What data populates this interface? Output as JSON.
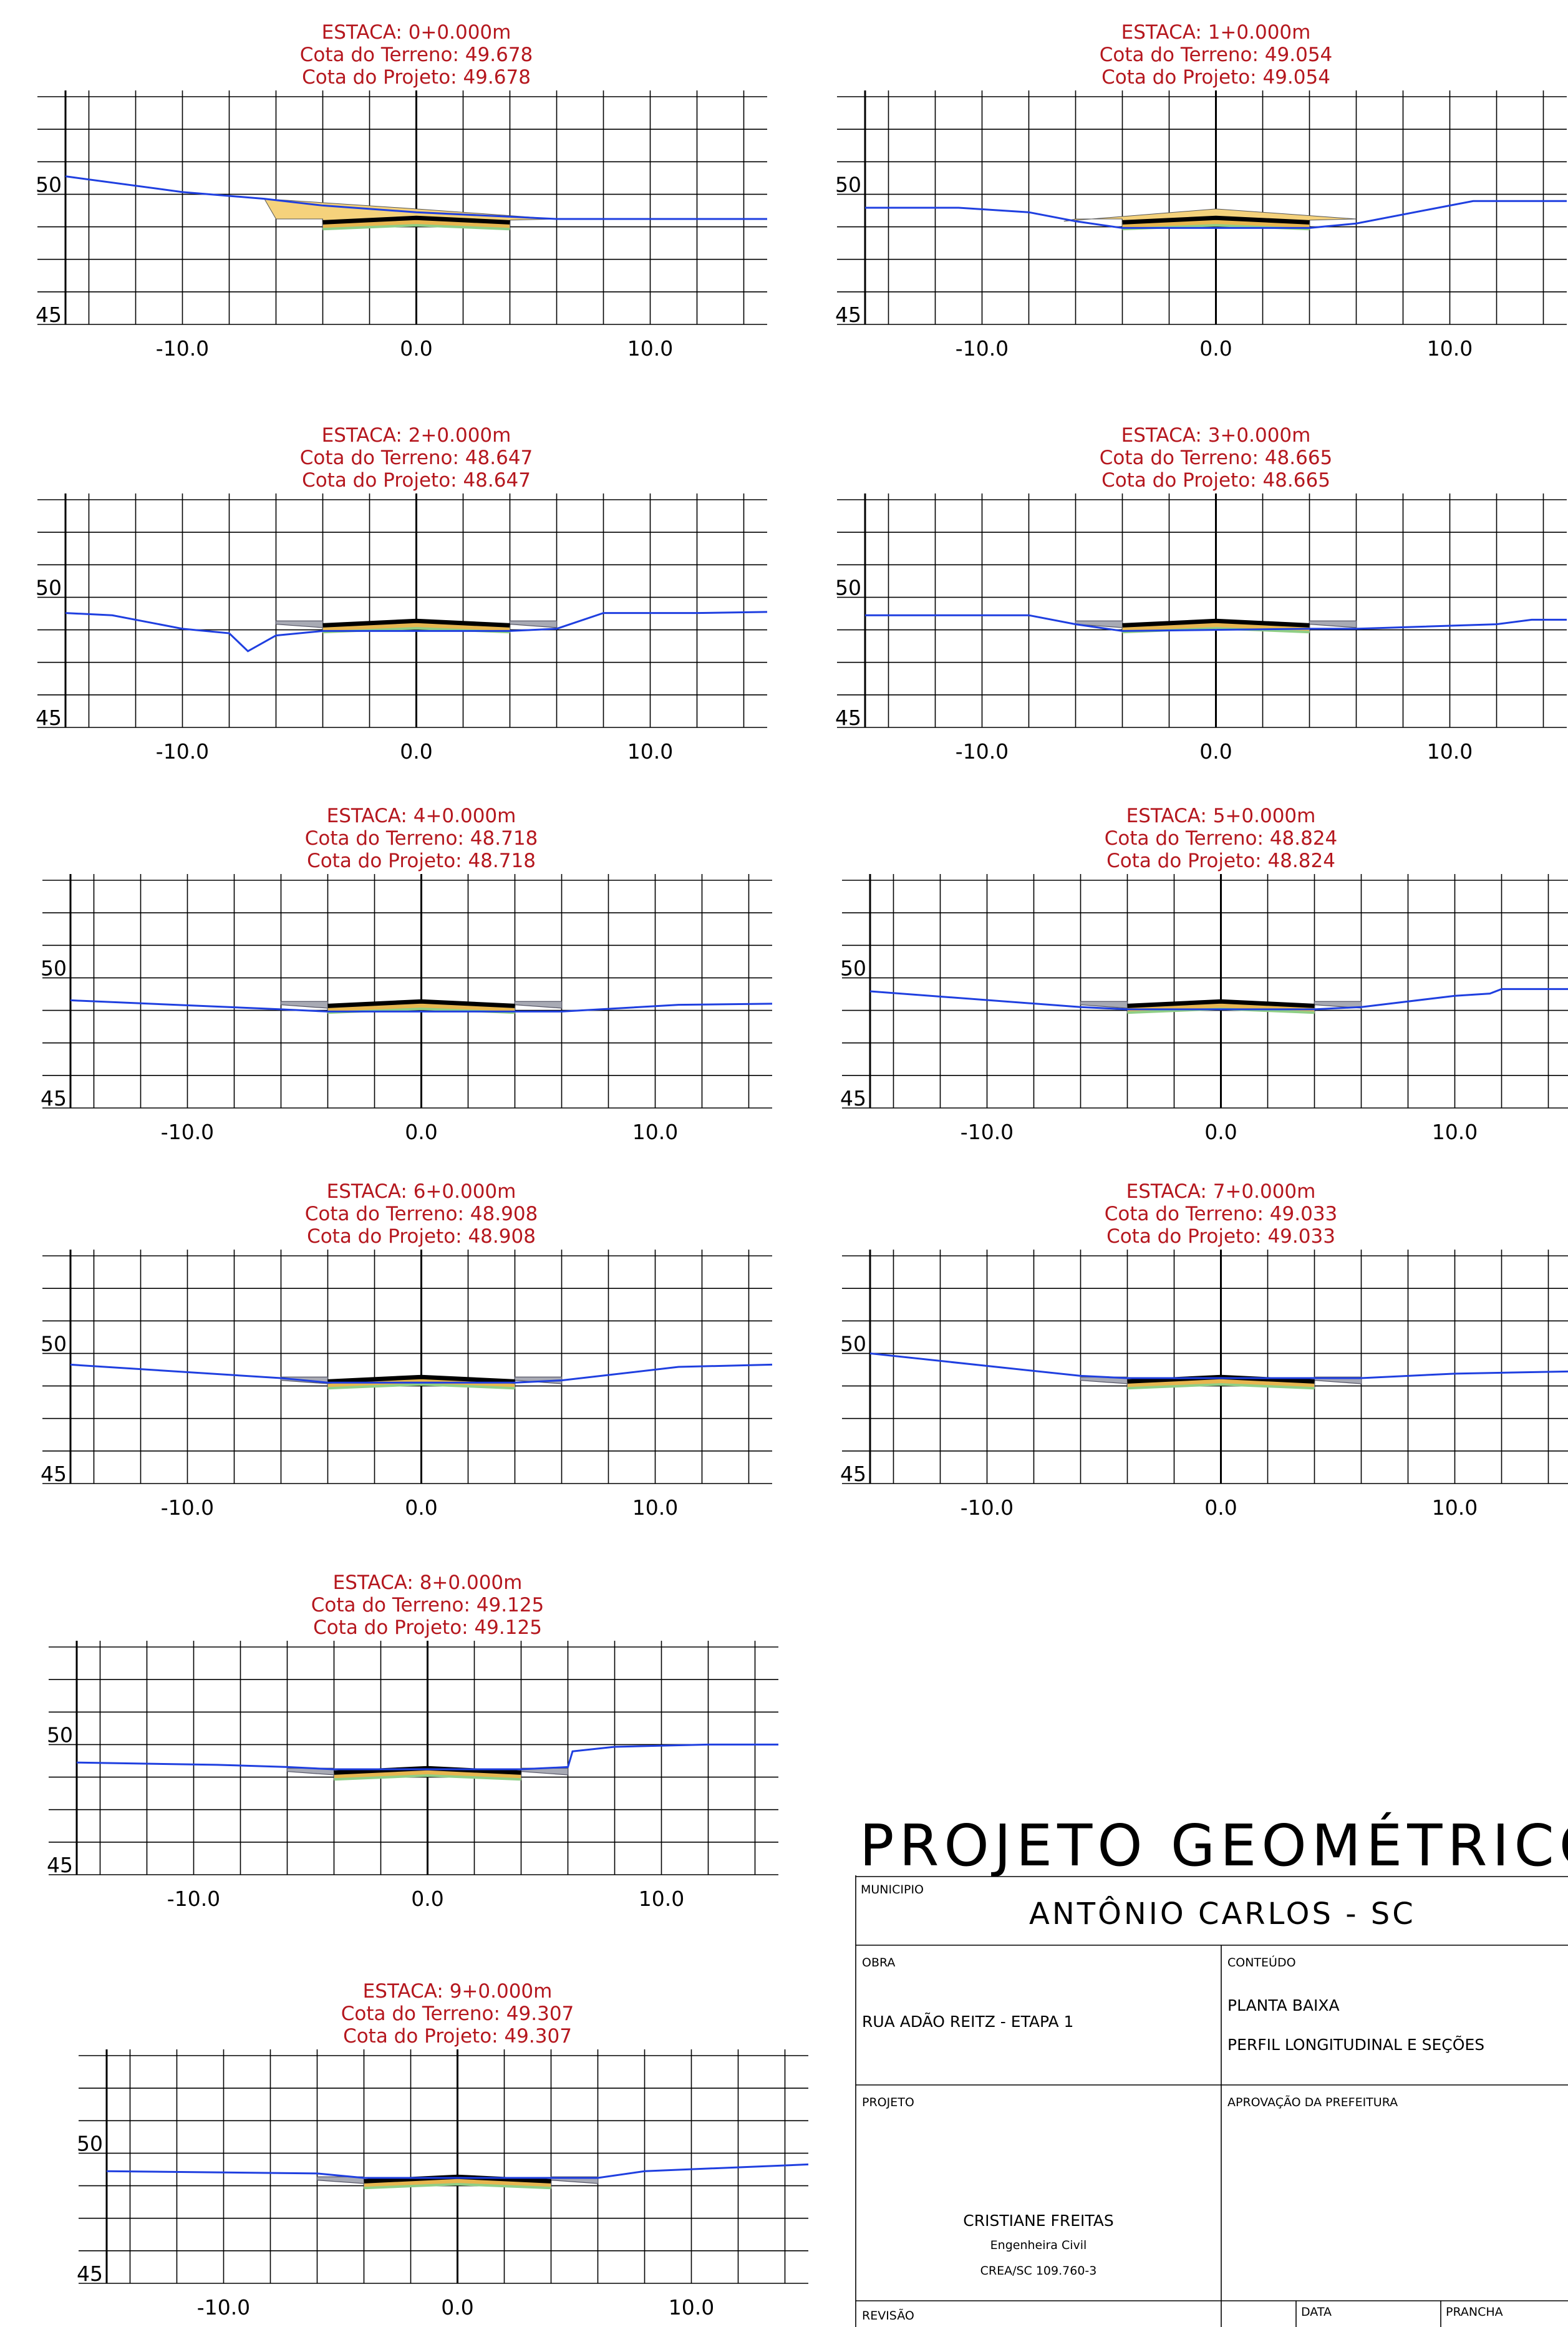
{
  "sections": [
    {
      "estaca": "ESTACA: 0+0.000m",
      "terreno": "Cota do Terreno:  49.678",
      "projeto": "Cota do Projeto: 49.678",
      "ground": [
        [
          -15,
          50.8
        ],
        [
          -10,
          50.1
        ],
        [
          -6.5,
          49.8
        ],
        [
          -4,
          49.5
        ],
        [
          0,
          49.2
        ],
        [
          4,
          49.0
        ],
        [
          6,
          48.9
        ],
        [
          15,
          48.9
        ]
      ],
      "embankment": "fill"
    },
    {
      "estaca": "ESTACA: 1+0.000m",
      "terreno": "Cota do Terreno:  49.054",
      "projeto": "Cota do Projeto: 49.054",
      "ground": [
        [
          -15,
          49.4
        ],
        [
          -11,
          49.4
        ],
        [
          -8,
          49.2
        ],
        [
          -6,
          48.8
        ],
        [
          -4,
          48.5
        ],
        [
          4,
          48.5
        ],
        [
          6,
          48.7
        ],
        [
          9,
          49.3
        ],
        [
          11,
          49.7
        ],
        [
          15,
          49.7
        ]
      ],
      "embankment": "fill"
    },
    {
      "estaca": "ESTACA: 2+0.000m",
      "terreno": "Cota do Terreno:  48.647",
      "projeto": "Cota do Projeto: 48.647",
      "ground": [
        [
          -15,
          49.3
        ],
        [
          -13,
          49.2
        ],
        [
          -10,
          48.6
        ],
        [
          -8,
          48.4
        ],
        [
          -7.2,
          47.6
        ],
        [
          -6,
          48.3
        ],
        [
          -4,
          48.5
        ],
        [
          4,
          48.5
        ],
        [
          6,
          48.6
        ],
        [
          8,
          49.3
        ],
        [
          12,
          49.3
        ],
        [
          15,
          49.35
        ]
      ],
      "embankment": "cut"
    },
    {
      "estaca": "ESTACA: 3+0.000m",
      "terreno": "Cota do Terreno:  48.665",
      "projeto": "Cota do Projeto: 48.665",
      "ground": [
        [
          -15,
          49.2
        ],
        [
          -8,
          49.2
        ],
        [
          -6,
          48.8
        ],
        [
          -4,
          48.5
        ],
        [
          4,
          48.6
        ],
        [
          6,
          48.6
        ],
        [
          12,
          48.8
        ],
        [
          13.5,
          49.0
        ],
        [
          15,
          49.0
        ]
      ],
      "embankment": "cut"
    },
    {
      "estaca": "ESTACA: 4+0.000m",
      "terreno": "Cota do Terreno:  48.718",
      "projeto": "Cota do Projeto: 48.718",
      "ground": [
        [
          -15,
          49.0
        ],
        [
          -6,
          48.6
        ],
        [
          -4,
          48.5
        ],
        [
          4,
          48.5
        ],
        [
          6,
          48.5
        ],
        [
          11,
          48.8
        ],
        [
          15,
          48.85
        ]
      ],
      "embankment": "cut"
    },
    {
      "estaca": "ESTACA: 5+0.000m",
      "terreno": "Cota do Terreno:  48.824",
      "projeto": "Cota do Projeto: 48.824",
      "ground": [
        [
          -15,
          49.4
        ],
        [
          -6,
          48.7
        ],
        [
          -4,
          48.6
        ],
        [
          4,
          48.6
        ],
        [
          6,
          48.7
        ],
        [
          10,
          49.2
        ],
        [
          11.5,
          49.3
        ],
        [
          12,
          49.5
        ],
        [
          15,
          49.5
        ]
      ],
      "embankment": "cut"
    },
    {
      "estaca": "ESTACA: 6+0.000m",
      "terreno": "Cota do Terreno:  48.908",
      "projeto": "Cota do Projeto: 48.908",
      "ground": [
        [
          -15,
          49.5
        ],
        [
          -6,
          48.9
        ],
        [
          -4,
          48.7
        ],
        [
          4,
          48.7
        ],
        [
          6,
          48.8
        ],
        [
          11,
          49.4
        ],
        [
          15,
          49.5
        ]
      ],
      "embankment": "cut"
    },
    {
      "estaca": "ESTACA: 7+0.000m",
      "terreno": "Cota do Terreno:  49.033",
      "projeto": "Cota do Projeto: 49.033",
      "ground": [
        [
          -15,
          50.0
        ],
        [
          -6,
          49.0
        ],
        [
          -4,
          48.9
        ],
        [
          4,
          48.9
        ],
        [
          6,
          48.9
        ],
        [
          10,
          49.1
        ],
        [
          15,
          49.2
        ]
      ],
      "embankment": "cut"
    },
    {
      "estaca": "ESTACA: 8+0.000m",
      "terreno": "Cota do Terreno:  49.125",
      "projeto": "Cota do Projeto: 49.125",
      "ground": [
        [
          -15,
          49.2
        ],
        [
          -9,
          49.1
        ],
        [
          -6,
          49.0
        ],
        [
          -4,
          48.9
        ],
        [
          4,
          48.9
        ],
        [
          6,
          49.0
        ],
        [
          6.2,
          49.7
        ],
        [
          8,
          49.9
        ],
        [
          12,
          50.0
        ],
        [
          15,
          50.0
        ]
      ],
      "embankment": "cut"
    },
    {
      "estaca": "ESTACA: 9+0.000m",
      "terreno": "Cota do Terreno:  49.307",
      "projeto": "Cota do Projeto: 49.307",
      "ground": [
        [
          -15,
          49.2
        ],
        [
          -6,
          49.1
        ],
        [
          -4,
          48.9
        ],
        [
          4,
          48.9
        ],
        [
          6,
          48.9
        ],
        [
          8,
          49.2
        ],
        [
          15,
          49.5
        ]
      ],
      "embankment": "cut"
    }
  ],
  "axes": {
    "x_ticks": [
      "-10.0",
      "0.0",
      "10.0"
    ],
    "y_ticks": [
      "50",
      "45"
    ],
    "xlim": [
      -15,
      15
    ],
    "ylim": [
      45,
      55
    ]
  },
  "colors": {
    "title_text": "#b5171e",
    "ground_line": "#1f3fe0",
    "fill_earth": "#f5d27c",
    "cut_slope": "#a8aab4",
    "pavement": "#000000",
    "base_layer": "#e7b64f",
    "subbase_layer": "#8fcf86"
  },
  "title_block": {
    "title": "PROJETO  GEOMÉTRICO",
    "municipio_label": "MUNICIPIO",
    "municipio": "ANTÔNIO CARLOS - SC",
    "obra_label": "OBRA",
    "obra": "RUA ADÃO REITZ - ETAPA 1",
    "conteudo_label": "CONTEÚDO",
    "conteudo_1": "PLANTA BAIXA",
    "conteudo_2": "PERFIL LONGITUDINAL E SEÇÕES",
    "projeto_label": "PROJETO",
    "aprovacao_label": "APROVAÇÃO DA PREFEITURA",
    "engineer_name": "CRISTIANE FREITAS",
    "engineer_title": "Engenheira Civil",
    "engineer_crea": "CREA/SC 109.760-3",
    "revisao_label": "REVISÃO",
    "data_label": "DATA",
    "prancha_label": "PRANCHA"
  }
}
